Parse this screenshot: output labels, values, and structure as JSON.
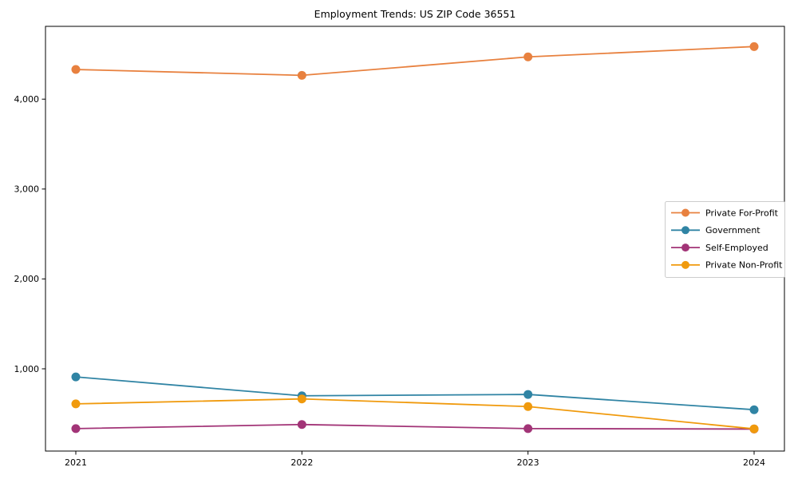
{
  "chart_data": {
    "type": "line",
    "title": "Employment Trends: US ZIP Code 36551",
    "x": [
      2021,
      2022,
      2023,
      2024
    ],
    "xtick_labels": [
      "2021",
      "2022",
      "2023",
      "2024"
    ],
    "yticks": [
      1000,
      2000,
      3000,
      4000
    ],
    "ytick_labels": [
      "1,000",
      "2,000",
      "3,000",
      "4,000"
    ],
    "ylim": [
      85,
      4810
    ],
    "grid": false,
    "legend_position": "center right",
    "marker": "circle",
    "series": [
      {
        "name": "Private For-Profit",
        "color": "#e8813f",
        "values": [
          4330,
          4265,
          4470,
          4585
        ]
      },
      {
        "name": "Government",
        "color": "#3084a4",
        "values": [
          910,
          700,
          715,
          545
        ]
      },
      {
        "name": "Self-Employed",
        "color": "#a23477",
        "values": [
          335,
          380,
          335,
          330
        ]
      },
      {
        "name": "Private Non-Profit",
        "color": "#f09a0d",
        "values": [
          610,
          665,
          580,
          332
        ]
      }
    ]
  }
}
